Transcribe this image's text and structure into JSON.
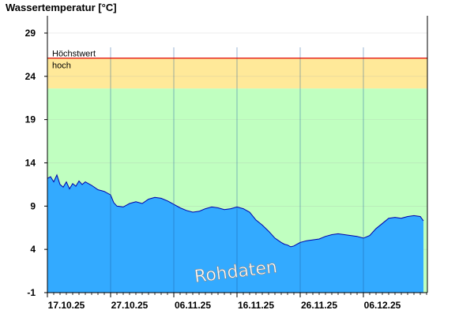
{
  "chart_data": {
    "type": "area",
    "title": "Wassertemperatur [°C]",
    "ylim": [
      -1,
      31
    ],
    "yticks": [
      -1,
      4,
      9,
      14,
      19,
      24,
      29
    ],
    "xticks": [
      {
        "day": 0,
        "label": "17.10.25"
      },
      {
        "day": 10,
        "label": "27.10.25"
      },
      {
        "day": 20,
        "label": "06.11.25"
      },
      {
        "day": 30,
        "label": "16.11.25"
      },
      {
        "day": 40,
        "label": "26.11.25"
      },
      {
        "day": 50,
        "label": "06.12.25"
      }
    ],
    "xlim_days": [
      0,
      60
    ],
    "bands": [
      {
        "name": "normal",
        "from": -1,
        "to": 22.6,
        "color": "#c0ffc0"
      },
      {
        "name": "hoch",
        "label": "hoch",
        "from": 22.6,
        "to": 26.1,
        "color": "#ffe999"
      }
    ],
    "lines": [
      {
        "name": "Höchstwert",
        "label": "Höchstwert",
        "value": 26.1,
        "color": "#e00000"
      }
    ],
    "series": [
      {
        "color": "#33aaff",
        "line_color": "#0000aa",
        "x_days": [
          0,
          0.5,
          1,
          1.5,
          2,
          2.5,
          3,
          3.5,
          4,
          4.5,
          5,
          5.5,
          6,
          7,
          8,
          9,
          10,
          10.5,
          11,
          12,
          13,
          14,
          15,
          16,
          17,
          18,
          19,
          20,
          21,
          22,
          23,
          24,
          25,
          26,
          27,
          28,
          29,
          30,
          31,
          32,
          33,
          34,
          35,
          36,
          37,
          37.5,
          38,
          38.5,
          39,
          39.5,
          40,
          41,
          42,
          43,
          44,
          45,
          46,
          47,
          48,
          49,
          50,
          51,
          52,
          53,
          54,
          55,
          56,
          57,
          58,
          59,
          59.5
        ],
        "values": [
          12.2,
          12.4,
          11.8,
          12.6,
          11.5,
          11.2,
          11.8,
          11.0,
          11.6,
          11.3,
          11.9,
          11.5,
          11.8,
          11.4,
          10.9,
          10.7,
          10.3,
          9.4,
          9.0,
          8.9,
          9.3,
          9.5,
          9.3,
          9.8,
          10.0,
          9.9,
          9.6,
          9.2,
          8.8,
          8.5,
          8.3,
          8.4,
          8.7,
          8.9,
          8.8,
          8.6,
          8.7,
          8.9,
          8.7,
          8.3,
          7.4,
          6.8,
          6.1,
          5.3,
          4.8,
          4.6,
          4.5,
          4.3,
          4.4,
          4.6,
          4.8,
          5.0,
          5.1,
          5.2,
          5.5,
          5.7,
          5.8,
          5.7,
          5.6,
          5.5,
          5.3,
          5.6,
          6.4,
          7.0,
          7.6,
          7.7,
          7.6,
          7.8,
          7.9,
          7.8,
          7.3
        ]
      }
    ],
    "watermark": "Rohdaten",
    "grid": true
  }
}
